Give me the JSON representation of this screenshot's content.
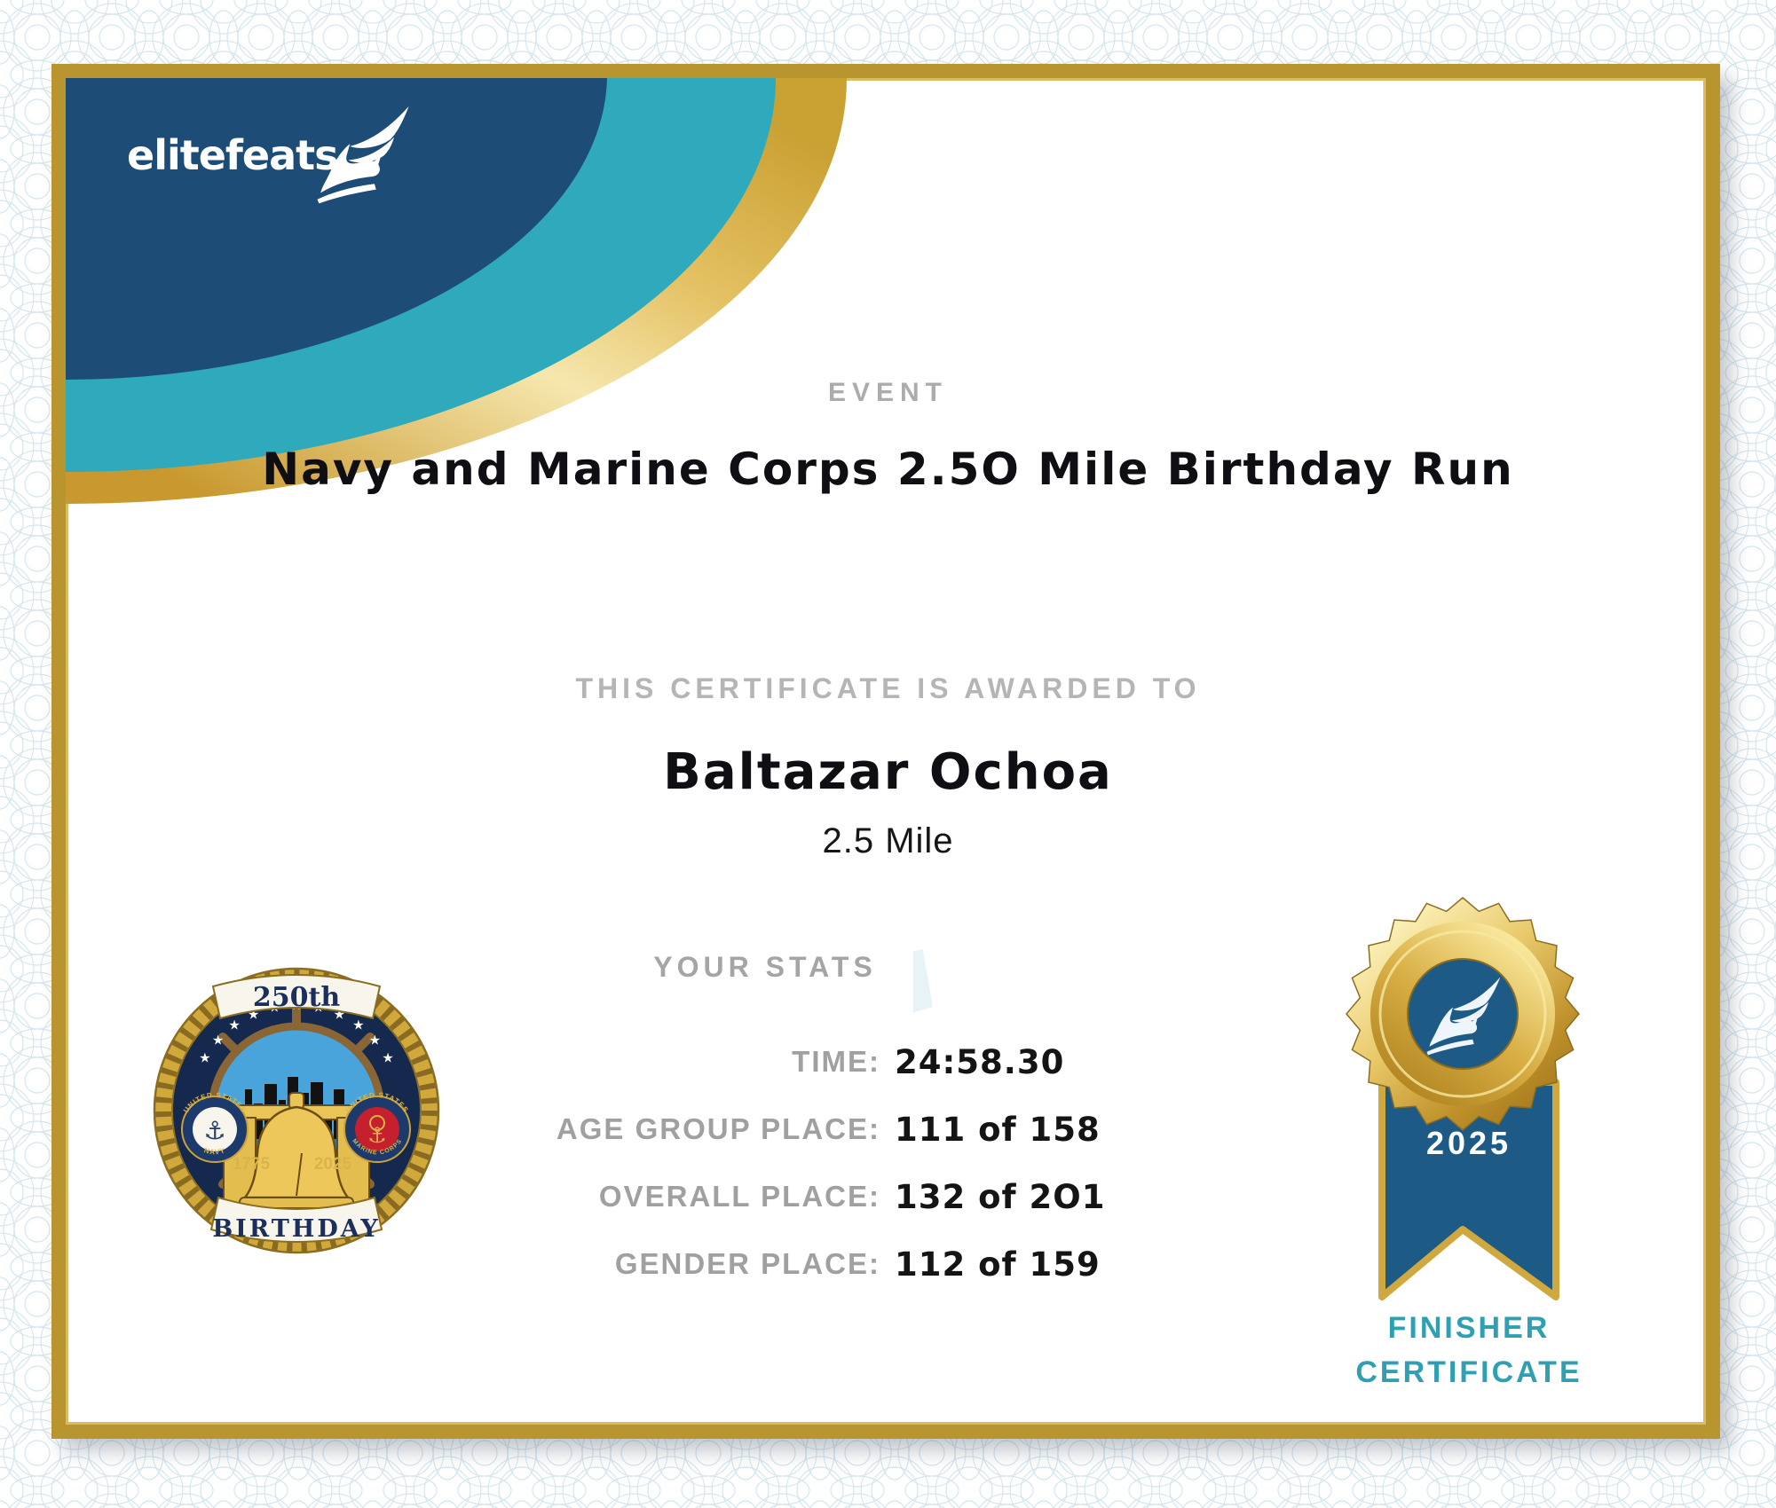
{
  "brand": {
    "name": "elitefeats",
    "icon": "winged-foot-icon"
  },
  "event": {
    "label": "EVENT",
    "title": "Navy and Marine Corps 2.5O Mile Birthday Run"
  },
  "award": {
    "label": "THIS CERTIFICATE IS AWARDED TO",
    "name": "Baltazar Ochoa",
    "distance": "2.5 Mile"
  },
  "stats": {
    "label": "YOUR STATS",
    "rows": [
      {
        "label": "TIME:",
        "value": "24:58.30"
      },
      {
        "label": "AGE GROUP PLACE:",
        "value": "111 of 158"
      },
      {
        "label": "OVERALL PLACE:",
        "value": "132 of 2O1"
      },
      {
        "label": "GENDER PLACE:",
        "value": "112 of 159"
      }
    ]
  },
  "seal": {
    "top_banner": "250th",
    "bottom_banner": "BIRTHDAY",
    "year_left": "1775",
    "year_right": "2025",
    "navy_emblem_top": "UNITED STATES",
    "navy_emblem_bottom": "NAVY",
    "marine_emblem_top": "UNITED STATES",
    "marine_emblem_bottom": "MARINE CORPS",
    "icon": "navy-marine-250th-birthday-seal"
  },
  "medal": {
    "year": "2025",
    "line1": "FINISHER",
    "line2": "CERTIFICATE",
    "icon": "gold-rosette-medal-winged-foot-icon"
  },
  "colors": {
    "header_navy": "#1d4d77",
    "header_teal": "#2fa9bc",
    "frame_gold": "#b9952f",
    "gold_light": "#f3dfa0",
    "medal_navy": "#1d5a85",
    "finisher_teal": "#2f9fb3",
    "label_gray": "#a0a0a0",
    "watermark_blue": "#e8f3f8",
    "seal_navy": "#15294f",
    "marine_red": "#c6202e"
  }
}
